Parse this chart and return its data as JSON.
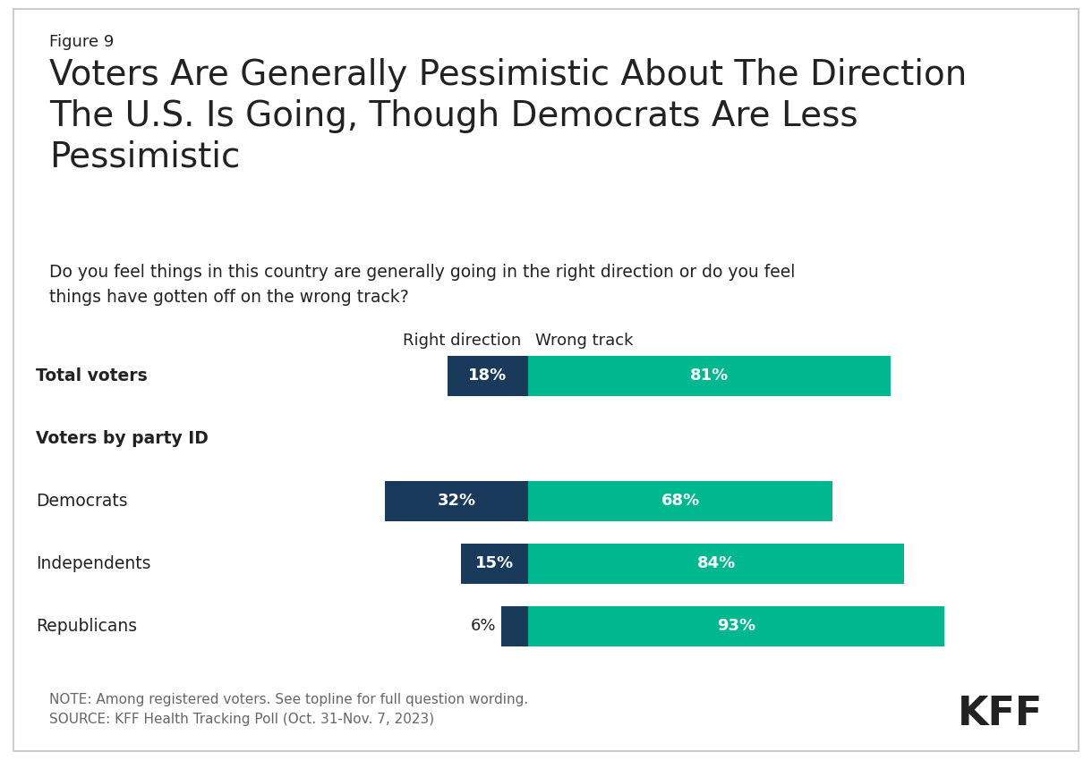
{
  "figure_label": "Figure 9",
  "title": "Voters Are Generally Pessimistic About The Direction\nThe U.S. Is Going, Though Democrats Are Less\nPessimistic",
  "subtitle": "Do you feel things in this country are generally going in the right direction or do you feel\nthings have gotten off on the wrong track?",
  "col_header_right": "Right direction",
  "col_header_wrong": "Wrong track",
  "categories": [
    "Total voters",
    "Voters by party ID",
    "Democrats",
    "Independents",
    "Republicans"
  ],
  "bold_rows": [
    0,
    1
  ],
  "header_only_rows": [
    1
  ],
  "right_direction": [
    18,
    null,
    32,
    15,
    6
  ],
  "wrong_track": [
    81,
    null,
    68,
    84,
    93
  ],
  "color_right": "#1a3a5c",
  "color_wrong": "#00b890",
  "note_line1": "NOTE: Among registered voters. See topline for full question wording.",
  "note_line2": "SOURCE: KFF Health Tracking Poll (Oct. 31-Nov. 7, 2023)",
  "kff_logo": "KFF",
  "bg_color": "#ffffff",
  "border_color": "#cccccc",
  "text_color": "#222222",
  "note_color": "#666666"
}
